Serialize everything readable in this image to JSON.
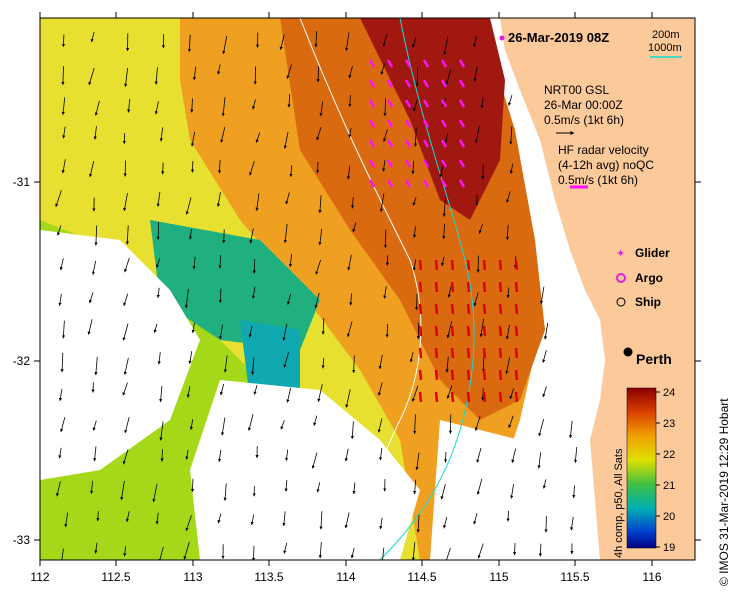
{
  "map": {
    "date_label": "26-Mar-2019 08Z",
    "depth_legend": [
      "200m",
      "1000m"
    ],
    "nrt": {
      "lines": [
        "NRT00 GSL",
        "26-Mar 00:00Z",
        "0.5m/s (1kt 6h)"
      ]
    },
    "hf": {
      "lines": [
        "HF radar velocity",
        "(4-12h avg) noQC",
        "0.5m/s (1kt 6h)"
      ]
    },
    "symbols": [
      {
        "label": "Glider",
        "color": "#e020e0"
      },
      {
        "label": "Argo",
        "color": "#e020e0"
      },
      {
        "label": "Ship",
        "color": "#000000"
      }
    ],
    "city": "Perth",
    "x_ticks": [
      "112",
      "112.5",
      "113",
      "113.5",
      "114",
      "114.5",
      "115",
      "115.5",
      "116"
    ],
    "y_ticks": [
      "-31",
      "-32",
      "-33"
    ],
    "colorbar": {
      "title": "4h comp, p50, All Sats",
      "ticks": [
        "24",
        "23",
        "22",
        "21",
        "20",
        "19"
      ]
    },
    "credit": "© IMOS 31-Mar-2019 12:29 Hobart"
  },
  "colors": {
    "land": "#fbc99a",
    "contour_200": "#18d8d8",
    "contour_1000": "#ffffff",
    "hf_arrow": "#ff10ff",
    "model_arrow": "#000000",
    "red_arrow": "#e00000"
  }
}
